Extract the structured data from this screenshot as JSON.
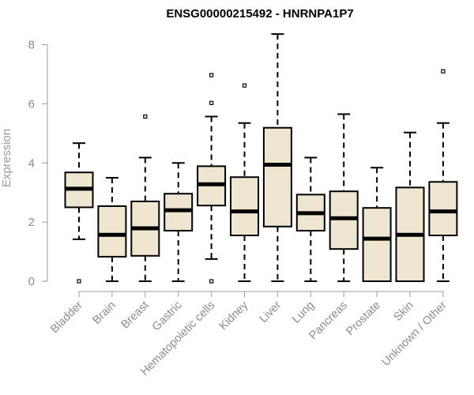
{
  "chart_data": {
    "type": "boxplot",
    "title": "ENSG00000215492 - HNRNPA1P7",
    "xlabel": "",
    "ylabel": "Expression",
    "ylim": [
      0,
      8.4
    ],
    "yticks": [
      0,
      2,
      4,
      6,
      8
    ],
    "grid": false,
    "legend": "none",
    "colors": {
      "box_fill": "#efe6cf",
      "stroke": "#000000",
      "axis": "#9a9a9a"
    },
    "categories": [
      "Bladder",
      "Brain",
      "Breast",
      "Gastric",
      "Hematopoietic cells",
      "Kidney",
      "Liver",
      "Lung",
      "Pancreas",
      "Prostate",
      "Skin",
      "Unknown / Other"
    ],
    "boxes": [
      {
        "label": "Bladder",
        "whisker_low": 1.42,
        "q1": 2.5,
        "median": 3.13,
        "q3": 3.68,
        "whisker_high": 4.67,
        "outliers": [
          0.0
        ]
      },
      {
        "label": "Brain",
        "whisker_low": 0.0,
        "q1": 0.83,
        "median": 1.57,
        "q3": 2.54,
        "whisker_high": 3.5,
        "outliers": []
      },
      {
        "label": "Breast",
        "whisker_low": 0.0,
        "q1": 0.86,
        "median": 1.79,
        "q3": 2.7,
        "whisker_high": 4.18,
        "outliers": [
          5.57
        ]
      },
      {
        "label": "Gastric",
        "whisker_low": 0.0,
        "q1": 1.71,
        "median": 2.4,
        "q3": 2.96,
        "whisker_high": 4.0,
        "outliers": []
      },
      {
        "label": "Hematopoietic cells",
        "whisker_low": 0.75,
        "q1": 2.56,
        "median": 3.28,
        "q3": 3.89,
        "whisker_high": 5.57,
        "outliers": [
          0.0,
          6.03,
          6.97
        ]
      },
      {
        "label": "Kidney",
        "whisker_low": 0.0,
        "q1": 1.55,
        "median": 2.36,
        "q3": 3.52,
        "whisker_high": 5.35,
        "outliers": [
          6.62
        ]
      },
      {
        "label": "Liver",
        "whisker_low": 0.0,
        "q1": 1.85,
        "median": 3.94,
        "q3": 5.19,
        "whisker_high": 8.36,
        "outliers": []
      },
      {
        "label": "Lung",
        "whisker_low": 0.0,
        "q1": 1.71,
        "median": 2.3,
        "q3": 2.93,
        "whisker_high": 4.18,
        "outliers": []
      },
      {
        "label": "Pancreas",
        "whisker_low": 0.0,
        "q1": 1.09,
        "median": 2.13,
        "q3": 3.04,
        "whisker_high": 5.65,
        "outliers": []
      },
      {
        "label": "Prostate",
        "whisker_low": 0.0,
        "q1": 0.0,
        "median": 1.44,
        "q3": 2.48,
        "whisker_high": 3.84,
        "outliers": []
      },
      {
        "label": "Skin",
        "whisker_low": 0.0,
        "q1": 0.0,
        "median": 1.57,
        "q3": 3.17,
        "whisker_high": 5.03,
        "outliers": []
      },
      {
        "label": "Unknown / Other",
        "whisker_low": 0.0,
        "q1": 1.55,
        "median": 2.36,
        "q3": 3.36,
        "whisker_high": 5.35,
        "outliers": [
          7.1
        ]
      }
    ]
  }
}
